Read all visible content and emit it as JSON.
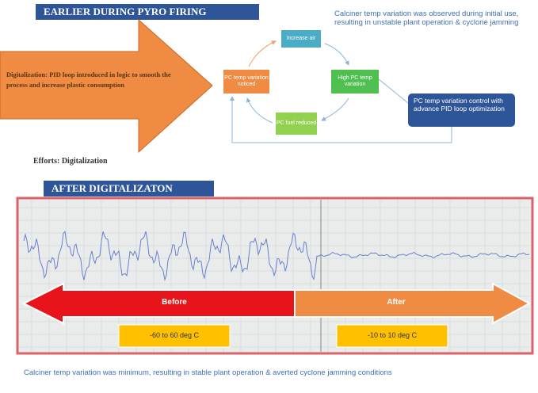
{
  "earlier": {
    "title": "EARLIER DURING PYRO FIRING",
    "observation": "Calciner temp variation was observed during initial use, resulting in unstable plant operation & cyclone jamming",
    "arrow_text": "Digitalization: PID loop introduced in logic to smooth the process and increase plastic consumption",
    "cycle": {
      "nodes": [
        {
          "label": "Increase air"
        },
        {
          "label": "High PC temp variation"
        },
        {
          "label": "PC fuel reduced"
        },
        {
          "label": "PC temp variation noticed"
        }
      ]
    },
    "solution": "PC temp variation control with advance PID loop optimization",
    "efforts": "Efforts: Digitalization"
  },
  "after": {
    "title": "AFTER DIGITALIZATON",
    "before_label": "Before",
    "after_label": "After",
    "before_range": "-60 to 60 deg C",
    "after_range": "-10 to 10 deg C",
    "conclusion": "Calciner temp variation was minimum, resulting in stable plant operation & averted cyclone jamming conditions"
  }
}
